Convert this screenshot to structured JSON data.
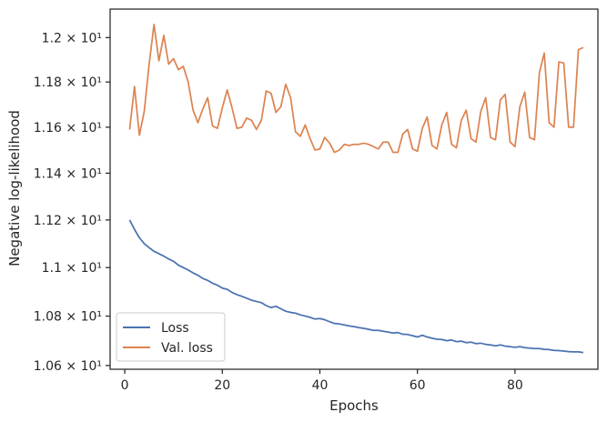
{
  "chart_data": {
    "type": "line",
    "xlabel": "Epochs",
    "ylabel": "Negative log-likelihood",
    "x_ticks": [
      0,
      20,
      40,
      60,
      80
    ],
    "y_ticks": [
      {
        "value": 10.6,
        "label": "1.06 × 10¹"
      },
      {
        "value": 10.8,
        "label": "1.08 × 10¹"
      },
      {
        "value": 11.0,
        "label": "1.1 × 10¹"
      },
      {
        "value": 11.2,
        "label": "1.12 × 10¹"
      },
      {
        "value": 11.4,
        "label": "1.14 × 10¹"
      },
      {
        "value": 11.6,
        "label": "1.16 × 10¹"
      },
      {
        "value": 11.8,
        "label": "1.18 × 10¹"
      },
      {
        "value": 12.0,
        "label": "1.2 × 10¹"
      }
    ],
    "y_scale": "log",
    "xlim": [
      -3,
      97
    ],
    "ylim": [
      10.585,
      12.13
    ],
    "grid": false,
    "legend_position": "lower-left",
    "x": [
      1,
      2,
      3,
      4,
      5,
      6,
      7,
      8,
      9,
      10,
      11,
      12,
      13,
      14,
      15,
      16,
      17,
      18,
      19,
      20,
      21,
      22,
      23,
      24,
      25,
      26,
      27,
      28,
      29,
      30,
      31,
      32,
      33,
      34,
      35,
      36,
      37,
      38,
      39,
      40,
      41,
      42,
      43,
      44,
      45,
      46,
      47,
      48,
      49,
      50,
      51,
      52,
      53,
      54,
      55,
      56,
      57,
      58,
      59,
      60,
      61,
      62,
      63,
      64,
      65,
      66,
      67,
      68,
      69,
      70,
      71,
      72,
      73,
      74,
      75,
      76,
      77,
      78,
      79,
      80,
      81,
      82,
      83,
      84,
      85,
      86,
      87,
      88,
      89,
      90,
      91,
      92,
      93,
      94
    ],
    "series": [
      {
        "name": "Loss",
        "color": "#4c72b0",
        "values": [
          11.2,
          11.16,
          11.125,
          11.1,
          11.083,
          11.068,
          11.058,
          11.048,
          11.036,
          11.026,
          11.01,
          11.0,
          10.99,
          10.978,
          10.968,
          10.955,
          10.947,
          10.935,
          10.927,
          10.915,
          10.91,
          10.897,
          10.888,
          10.881,
          10.873,
          10.865,
          10.86,
          10.855,
          10.843,
          10.835,
          10.84,
          10.83,
          10.82,
          10.815,
          10.812,
          10.805,
          10.8,
          10.795,
          10.788,
          10.79,
          10.785,
          10.777,
          10.77,
          10.768,
          10.764,
          10.76,
          10.757,
          10.753,
          10.75,
          10.746,
          10.742,
          10.742,
          10.738,
          10.735,
          10.731,
          10.733,
          10.726,
          10.725,
          10.72,
          10.715,
          10.722,
          10.715,
          10.71,
          10.706,
          10.705,
          10.7,
          10.703,
          10.696,
          10.698,
          10.692,
          10.694,
          10.688,
          10.69,
          10.685,
          10.683,
          10.679,
          10.683,
          10.678,
          10.676,
          10.673,
          10.676,
          10.672,
          10.67,
          10.668,
          10.668,
          10.665,
          10.664,
          10.661,
          10.66,
          10.658,
          10.656,
          10.655,
          10.655,
          10.652
        ]
      },
      {
        "name": "Val. loss",
        "color": "#dd8452",
        "values": [
          11.59,
          11.78,
          11.565,
          11.67,
          11.88,
          12.06,
          11.895,
          12.01,
          11.88,
          11.905,
          11.855,
          11.87,
          11.8,
          11.675,
          11.62,
          11.68,
          11.73,
          11.605,
          11.595,
          11.685,
          11.765,
          11.685,
          11.595,
          11.6,
          11.64,
          11.63,
          11.59,
          11.63,
          11.76,
          11.75,
          11.665,
          11.69,
          11.79,
          11.73,
          11.58,
          11.56,
          11.61,
          11.55,
          11.5,
          11.505,
          11.555,
          11.53,
          11.49,
          11.5,
          11.525,
          11.52,
          11.525,
          11.525,
          11.53,
          11.525,
          11.515,
          11.505,
          11.535,
          11.535,
          11.49,
          11.49,
          11.57,
          11.59,
          11.505,
          11.495,
          11.595,
          11.645,
          11.52,
          11.505,
          11.61,
          11.665,
          11.525,
          11.51,
          11.63,
          11.675,
          11.55,
          11.535,
          11.67,
          11.73,
          11.555,
          11.545,
          11.72,
          11.745,
          11.535,
          11.515,
          11.69,
          11.755,
          11.555,
          11.545,
          11.84,
          11.93,
          11.62,
          11.6,
          11.89,
          11.885,
          11.6,
          11.6,
          11.945,
          11.955
        ]
      }
    ]
  }
}
